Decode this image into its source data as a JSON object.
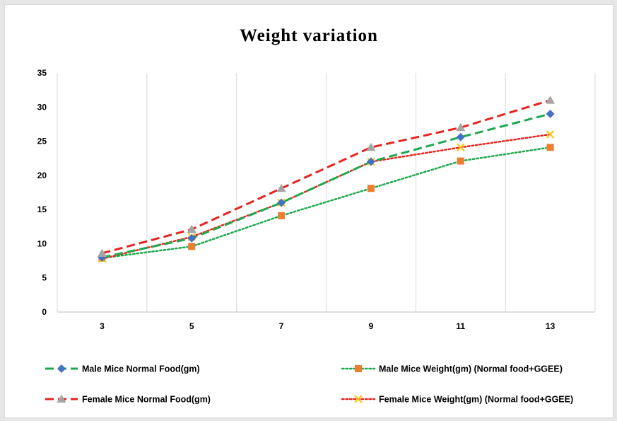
{
  "chart_data": {
    "type": "line",
    "title": "Weight variation",
    "xlabel": "",
    "ylabel": "",
    "x": [
      3,
      5,
      7,
      9,
      11,
      13
    ],
    "ylim": [
      0,
      35
    ],
    "yticks": [
      0,
      5,
      10,
      15,
      20,
      25,
      30,
      35
    ],
    "grid": "vertical",
    "legend_position": "bottom",
    "series": [
      {
        "name": "Male Mice Normal Food(gm)",
        "values": [
          8,
          10.8,
          16,
          22,
          25.6,
          29
        ],
        "color": "#1fa84e",
        "line_style": "dashed",
        "marker": "diamond",
        "marker_color": "#4472c4"
      },
      {
        "name": "Male Mice Weight(gm) (Normal food+GGEE)",
        "values": [
          7.9,
          9.6,
          14.1,
          18.1,
          22.1,
          24.1
        ],
        "color": "#1fa84e",
        "line_style": "dotted",
        "marker": "square",
        "marker_color": "#ed7d31"
      },
      {
        "name": "Female Mice Normal Food(gm)",
        "values": [
          8.6,
          12.1,
          18.1,
          24.1,
          27,
          31
        ],
        "color": "#e8231e",
        "line_style": "dashed",
        "marker": "triangle",
        "marker_color": "#a5a5a5"
      },
      {
        "name": "Female Mice Weight(gm) (Normal food+GGEE)",
        "values": [
          7.8,
          11,
          16,
          22,
          24.1,
          26
        ],
        "color": "#e8231e",
        "line_style": "dotted",
        "marker": "x",
        "marker_color": "#ffc000"
      }
    ]
  }
}
